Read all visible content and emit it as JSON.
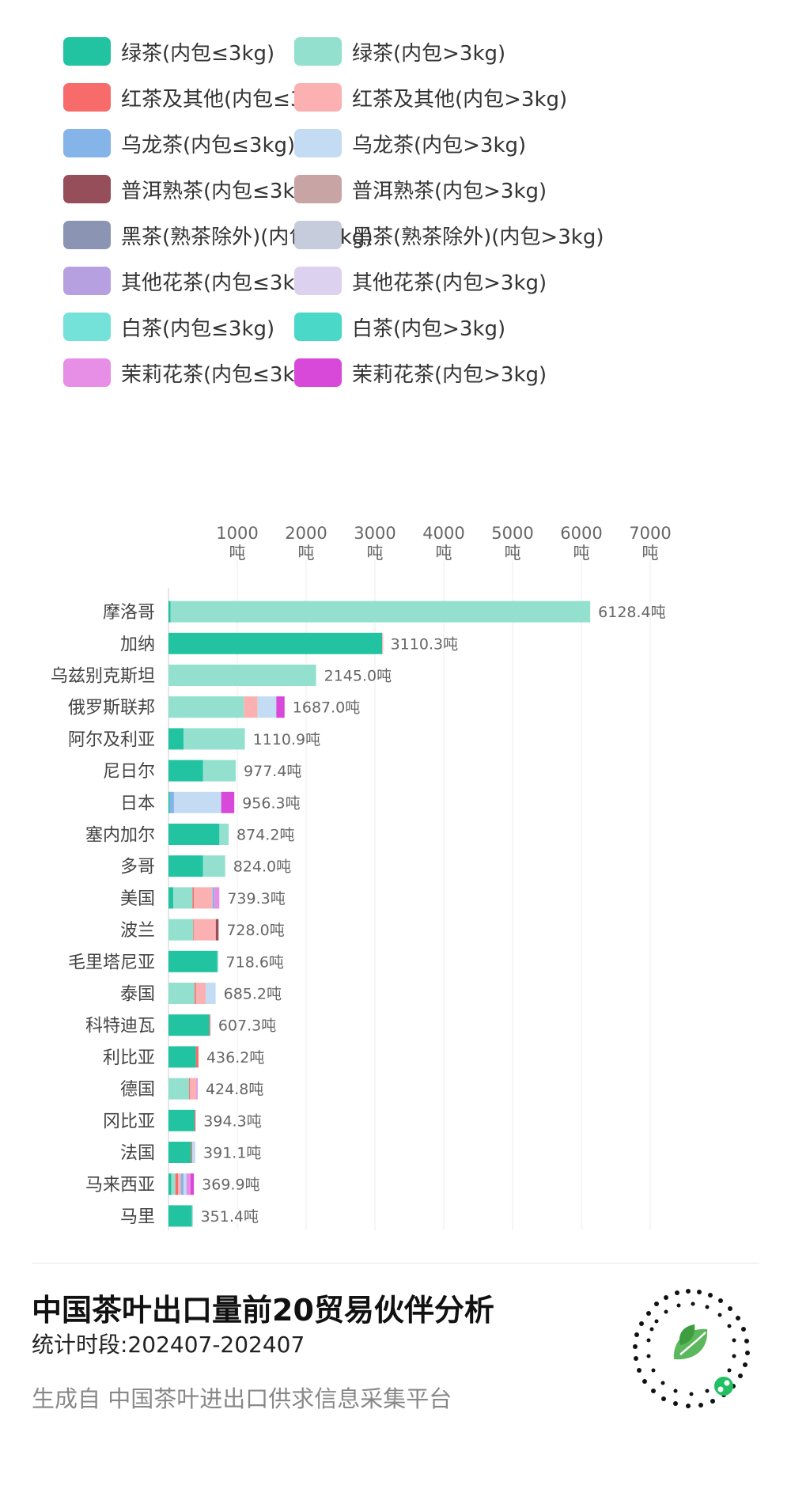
{
  "legend": [
    {
      "label": "绿茶(内包≤3kg)",
      "color": "#22c3a0"
    },
    {
      "label": "绿茶(内包>3kg)",
      "color": "#93e0cf"
    },
    {
      "label": "红茶及其他(内包≤3kg)",
      "color": "#f86b6b"
    },
    {
      "label": "红茶及其他(内包>3kg)",
      "color": "#fbb1b1"
    },
    {
      "label": "乌龙茶(内包≤3kg)",
      "color": "#84b4e8"
    },
    {
      "label": "乌龙茶(内包>3kg)",
      "color": "#c3dcf3"
    },
    {
      "label": "普洱熟茶(内包≤3kg)",
      "color": "#964e5a"
    },
    {
      "label": "普洱熟茶(内包>3kg)",
      "color": "#c9a4a5"
    },
    {
      "label": "黑茶(熟茶除外)(内包≤3kg)",
      "color": "#8b95b3"
    },
    {
      "label": "黑茶(熟茶除外)(内包>3kg)",
      "color": "#c7ccdc"
    },
    {
      "label": "其他花茶(内包≤3kg)",
      "color": "#b6a0e0"
    },
    {
      "label": "其他花茶(内包>3kg)",
      "color": "#dcd2ef"
    },
    {
      "label": "白茶(内包≤3kg)",
      "color": "#74e2d8"
    },
    {
      "label": "白茶(内包>3kg)",
      "color": "#4ad8c8"
    },
    {
      "label": "茉莉花茶(内包≤3kg)",
      "color": "#e78ee6"
    },
    {
      "label": "茉莉花茶(内包>3kg)",
      "color": "#d949d9"
    }
  ],
  "chart_data": {
    "type": "bar",
    "orientation": "horizontal",
    "stacked": true,
    "xlim": [
      0,
      7000
    ],
    "x_ticks": [
      1000,
      2000,
      3000,
      4000,
      5000,
      6000,
      7000
    ],
    "tick_unit": "吨",
    "grid": true,
    "categories": [
      "摩洛哥",
      "加纳",
      "乌兹别克斯坦",
      "俄罗斯联邦",
      "阿尔及利亚",
      "尼日尔",
      "日本",
      "塞内加尔",
      "多哥",
      "美国",
      "波兰",
      "毛里塔尼亚",
      "泰国",
      "科特迪瓦",
      "利比亚",
      "德国",
      "冈比亚",
      "法国",
      "马来西亚",
      "马里"
    ],
    "totals": [
      6128.4,
      3110.3,
      2145.0,
      1687.0,
      1110.9,
      977.4,
      956.3,
      874.2,
      824.0,
      739.3,
      728.0,
      718.6,
      685.2,
      607.3,
      436.2,
      424.8,
      394.3,
      391.1,
      369.9,
      351.4
    ],
    "total_labels": [
      "6128.4吨",
      "3110.3吨",
      "2145.0吨",
      "1687.0吨",
      "1110.9吨",
      "977.4吨",
      "956.3吨",
      "874.2吨",
      "824.0吨",
      "739.3吨",
      "728.0吨",
      "718.6吨",
      "685.2吨",
      "607.3吨",
      "436.2吨",
      "424.8吨",
      "394.3吨",
      "391.1吨",
      "369.9吨",
      "351.4吨"
    ],
    "series": [
      {
        "name": "绿茶(内包≤3kg)",
        "color": "#22c3a0",
        "values": [
          30,
          3105,
          0,
          0,
          220,
          500,
          20,
          740,
          500,
          70,
          0,
          710,
          0,
          595,
          400,
          0,
          380,
          330,
          40,
          340
        ]
      },
      {
        "name": "绿茶(内包>3kg)",
        "color": "#93e0cf",
        "values": [
          6098,
          0,
          2145,
          1095,
          890,
          477,
          0,
          134,
          324,
          280,
          360,
          8,
          380,
          0,
          0,
          300,
          0,
          0,
          60,
          11
        ]
      },
      {
        "name": "红茶及其他(内包≤3kg)",
        "color": "#f86b6b",
        "values": [
          0,
          0,
          0,
          0,
          0,
          0,
          0,
          0,
          0,
          20,
          8,
          0,
          20,
          12,
          36,
          14,
          14,
          16,
          40,
          0
        ]
      },
      {
        "name": "红茶及其他(内包>3kg)",
        "color": "#fbb1b1",
        "values": [
          0,
          5,
          0,
          200,
          0,
          0,
          0,
          0,
          0,
          270,
          320,
          0,
          140,
          0,
          0,
          90,
          0,
          0,
          40,
          0
        ]
      },
      {
        "name": "乌龙茶(内包≤3kg)",
        "color": "#84b4e8",
        "values": [
          0,
          0,
          0,
          0,
          0,
          0,
          60,
          0,
          0,
          30,
          0,
          0,
          0,
          0,
          0,
          0,
          0,
          0,
          40,
          0
        ]
      },
      {
        "name": "乌龙茶(内包>3kg)",
        "color": "#c3dcf3",
        "values": [
          0,
          0,
          0,
          272,
          0,
          0,
          686,
          0,
          0,
          0,
          0,
          0,
          145,
          0,
          0,
          0,
          0,
          45,
          40,
          0
        ]
      },
      {
        "name": "普洱熟茶(内包≤3kg)",
        "color": "#964e5a",
        "values": [
          0,
          0,
          0,
          0,
          0,
          0,
          0,
          0,
          0,
          0,
          40,
          0,
          0,
          0,
          0,
          0,
          0,
          0,
          0,
          0
        ]
      },
      {
        "name": "茉莉花茶(内包≤3kg)",
        "color": "#e78ee6",
        "values": [
          0,
          0,
          0,
          0,
          0,
          0,
          0,
          0,
          0,
          69,
          0,
          0,
          0,
          0,
          0,
          20,
          0,
          0,
          59,
          0
        ]
      },
      {
        "name": "茉莉花茶(内包>3kg)",
        "color": "#d949d9",
        "values": [
          0,
          0,
          0,
          120,
          0,
          0,
          190,
          0,
          0,
          0,
          0,
          0,
          0,
          0,
          0,
          0,
          0,
          0,
          50,
          0
        ]
      }
    ]
  },
  "footer": {
    "title": "中国茶叶出口量前20贸易伙伴分析",
    "period": "统计时段:202407-202407",
    "source": "生成自 中国茶叶进出口供求信息采集平台"
  }
}
